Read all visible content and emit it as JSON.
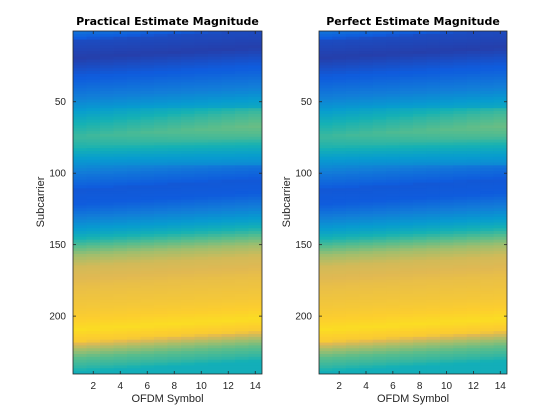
{
  "chart_data": [
    {
      "type": "heatmap",
      "title": "Practical Estimate Magnitude",
      "xlabel": "OFDM Symbol",
      "ylabel": "Subcarrier",
      "x_range": [
        0.5,
        14.5
      ],
      "y_range": [
        0.5,
        240.5
      ],
      "y_reversed": true,
      "xticks": [
        2,
        4,
        6,
        8,
        10,
        12,
        14
      ],
      "yticks": [
        50,
        100,
        150,
        200
      ],
      "colormap": "parula",
      "columns": 14,
      "rows": 240
    },
    {
      "type": "heatmap",
      "title": "Perfect Estimate Magnitude",
      "xlabel": "OFDM Symbol",
      "ylabel": "Subcarrier",
      "x_range": [
        0.5,
        14.5
      ],
      "y_range": [
        0.5,
        240.5
      ],
      "y_reversed": true,
      "xticks": [
        2,
        4,
        6,
        8,
        10,
        12,
        14
      ],
      "yticks": [
        50,
        100,
        150,
        200
      ],
      "colormap": "parula",
      "columns": 14,
      "rows": 240
    }
  ]
}
